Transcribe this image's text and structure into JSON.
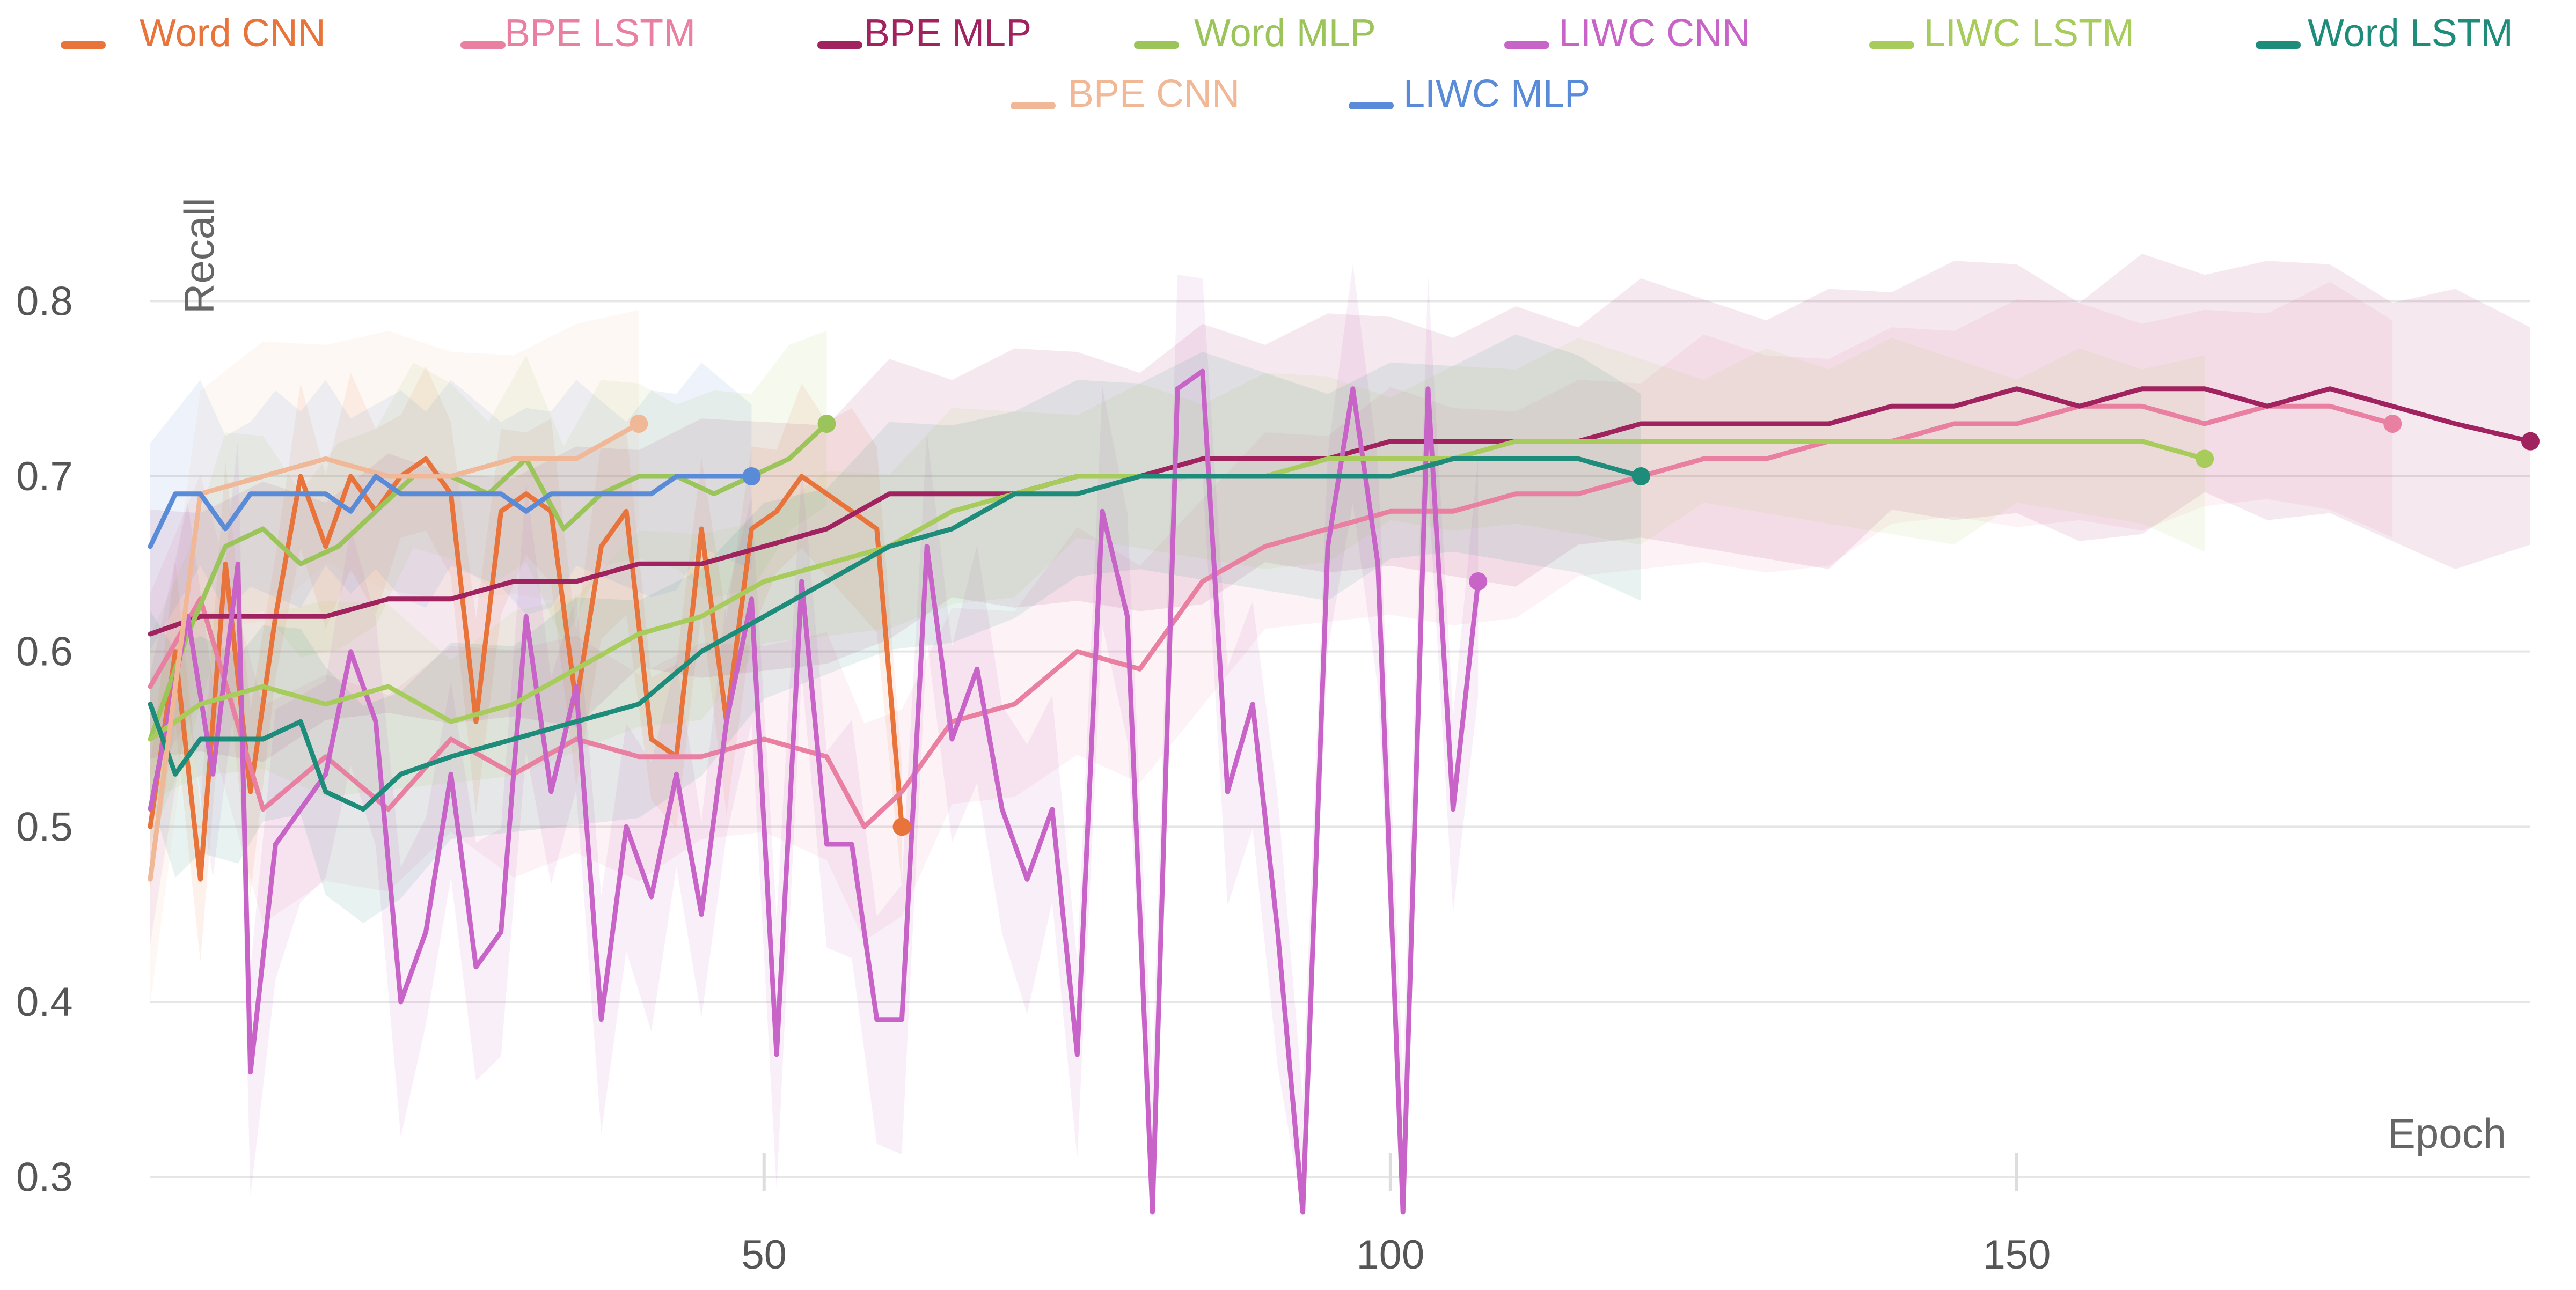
{
  "chart_data": {
    "type": "line",
    "xlabel": "Epoch",
    "ylabel": "Recall",
    "xlim": [
      1,
      191
    ],
    "ylim": [
      0.28,
      0.88
    ],
    "x_ticks": [
      50,
      100,
      150
    ],
    "y_ticks": [
      0.3,
      0.4,
      0.5,
      0.6,
      0.7,
      0.8
    ],
    "grid": "horizontal",
    "legend_position": "top",
    "series": [
      {
        "name": "Word CNN",
        "color": "#E8743B",
        "x": [
          1,
          3,
          5,
          7,
          9,
          11,
          13,
          15,
          17,
          19,
          21,
          23,
          25,
          27,
          29,
          31,
          33,
          35,
          37,
          39,
          41,
          43,
          45,
          47,
          49,
          51,
          53,
          55,
          57,
          59,
          61
        ],
        "y": [
          0.5,
          0.6,
          0.47,
          0.65,
          0.52,
          0.62,
          0.7,
          0.66,
          0.7,
          0.68,
          0.7,
          0.71,
          0.69,
          0.56,
          0.68,
          0.69,
          0.68,
          0.57,
          0.66,
          0.68,
          0.55,
          0.54,
          0.67,
          0.56,
          0.67,
          0.68,
          0.7,
          0.69,
          0.68,
          0.67,
          0.5
        ]
      },
      {
        "name": "BPE LSTM",
        "color": "#E97FA1",
        "x": [
          1,
          5,
          10,
          15,
          20,
          25,
          30,
          35,
          40,
          45,
          50,
          55,
          58,
          61,
          65,
          70,
          75,
          80,
          85,
          90,
          95,
          100,
          105,
          110,
          115,
          120,
          125,
          130,
          135,
          140,
          145,
          150,
          155,
          160,
          165,
          170,
          175,
          180
        ],
        "y": [
          0.58,
          0.63,
          0.51,
          0.54,
          0.51,
          0.55,
          0.53,
          0.55,
          0.54,
          0.54,
          0.55,
          0.54,
          0.5,
          0.52,
          0.56,
          0.57,
          0.6,
          0.59,
          0.64,
          0.66,
          0.67,
          0.68,
          0.68,
          0.69,
          0.69,
          0.7,
          0.71,
          0.71,
          0.72,
          0.72,
          0.73,
          0.73,
          0.74,
          0.74,
          0.73,
          0.74,
          0.74,
          0.73
        ]
      },
      {
        "name": "BPE MLP",
        "color": "#A0225F",
        "x": [
          1,
          5,
          10,
          15,
          20,
          25,
          30,
          35,
          40,
          45,
          50,
          55,
          60,
          65,
          70,
          75,
          80,
          85,
          90,
          95,
          100,
          105,
          110,
          115,
          120,
          125,
          130,
          135,
          140,
          145,
          150,
          155,
          160,
          165,
          170,
          175,
          180,
          185,
          191
        ],
        "y": [
          0.61,
          0.62,
          0.62,
          0.62,
          0.63,
          0.63,
          0.64,
          0.64,
          0.65,
          0.65,
          0.66,
          0.67,
          0.69,
          0.69,
          0.69,
          0.7,
          0.7,
          0.71,
          0.71,
          0.71,
          0.72,
          0.72,
          0.72,
          0.72,
          0.73,
          0.73,
          0.73,
          0.73,
          0.74,
          0.74,
          0.75,
          0.74,
          0.75,
          0.75,
          0.74,
          0.75,
          0.74,
          0.73,
          0.72
        ]
      },
      {
        "name": "Word MLP",
        "color": "#9BC55A",
        "x": [
          1,
          4,
          7,
          10,
          13,
          16,
          19,
          22,
          25,
          28,
          31,
          34,
          37,
          40,
          43,
          46,
          49,
          52,
          55
        ],
        "y": [
          0.55,
          0.61,
          0.66,
          0.67,
          0.65,
          0.66,
          0.68,
          0.7,
          0.7,
          0.69,
          0.71,
          0.67,
          0.69,
          0.7,
          0.7,
          0.69,
          0.7,
          0.71,
          0.73
        ]
      },
      {
        "name": "LIWC CNN",
        "color": "#C864C8",
        "x": [
          1,
          4,
          6,
          8,
          9,
          11,
          13,
          15,
          17,
          19,
          21,
          23,
          25,
          27,
          29,
          31,
          33,
          35,
          37,
          39,
          41,
          43,
          45,
          47,
          49,
          51,
          53,
          55,
          57,
          59,
          61,
          63,
          65,
          67,
          69,
          71,
          73,
          75,
          77,
          79,
          81,
          83,
          85,
          87,
          89,
          91,
          93,
          95,
          97,
          99,
          101,
          103,
          105,
          107
        ],
        "y": [
          0.51,
          0.62,
          0.53,
          0.65,
          0.36,
          0.49,
          0.51,
          0.53,
          0.6,
          0.56,
          0.4,
          0.44,
          0.53,
          0.42,
          0.44,
          0.62,
          0.52,
          0.58,
          0.39,
          0.5,
          0.46,
          0.53,
          0.45,
          0.56,
          0.63,
          0.37,
          0.64,
          0.49,
          0.49,
          0.39,
          0.39,
          0.66,
          0.55,
          0.59,
          0.51,
          0.47,
          0.51,
          0.37,
          0.68,
          0.62,
          0.28,
          0.75,
          0.76,
          0.52,
          0.57,
          0.44,
          0.28,
          0.66,
          0.75,
          0.65,
          0.28,
          0.75,
          0.51,
          0.64
        ]
      },
      {
        "name": "LIWC LSTM",
        "color": "#A8CC5C",
        "x": [
          1,
          5,
          10,
          15,
          20,
          25,
          30,
          35,
          40,
          45,
          50,
          55,
          60,
          65,
          70,
          75,
          80,
          85,
          90,
          95,
          100,
          105,
          110,
          115,
          120,
          125,
          130,
          135,
          140,
          145,
          150,
          155,
          160,
          165
        ],
        "y": [
          0.55,
          0.57,
          0.58,
          0.57,
          0.58,
          0.56,
          0.57,
          0.59,
          0.61,
          0.62,
          0.64,
          0.65,
          0.66,
          0.68,
          0.69,
          0.7,
          0.7,
          0.7,
          0.7,
          0.71,
          0.71,
          0.71,
          0.72,
          0.72,
          0.72,
          0.72,
          0.72,
          0.72,
          0.72,
          0.72,
          0.72,
          0.72,
          0.72,
          0.71
        ]
      },
      {
        "name": "Word LSTM",
        "color": "#1E8C7A",
        "x": [
          1,
          3,
          5,
          8,
          10,
          13,
          15,
          18,
          21,
          25,
          30,
          35,
          40,
          45,
          50,
          55,
          60,
          65,
          70,
          75,
          80,
          85,
          90,
          95,
          100,
          105,
          110,
          115,
          120
        ],
        "y": [
          0.57,
          0.53,
          0.55,
          0.55,
          0.55,
          0.56,
          0.52,
          0.51,
          0.53,
          0.54,
          0.55,
          0.56,
          0.57,
          0.6,
          0.62,
          0.64,
          0.66,
          0.67,
          0.69,
          0.69,
          0.7,
          0.7,
          0.7,
          0.7,
          0.7,
          0.71,
          0.71,
          0.71,
          0.7
        ]
      },
      {
        "name": "BPE CNN",
        "color": "#F0B896",
        "x": [
          1,
          5,
          10,
          15,
          20,
          25,
          30,
          35,
          40
        ],
        "y": [
          0.47,
          0.69,
          0.7,
          0.71,
          0.7,
          0.7,
          0.71,
          0.71,
          0.73
        ]
      },
      {
        "name": "LIWC MLP",
        "color": "#5A8BD8",
        "x": [
          1,
          3,
          5,
          7,
          9,
          11,
          13,
          15,
          17,
          19,
          21,
          23,
          25,
          27,
          29,
          31,
          33,
          35,
          37,
          39,
          41,
          43,
          45,
          47,
          49
        ],
        "y": [
          0.66,
          0.69,
          0.69,
          0.67,
          0.69,
          0.69,
          0.69,
          0.69,
          0.68,
          0.7,
          0.69,
          0.69,
          0.69,
          0.69,
          0.69,
          0.68,
          0.69,
          0.69,
          0.69,
          0.69,
          0.69,
          0.7,
          0.7,
          0.7,
          0.7
        ]
      }
    ]
  }
}
